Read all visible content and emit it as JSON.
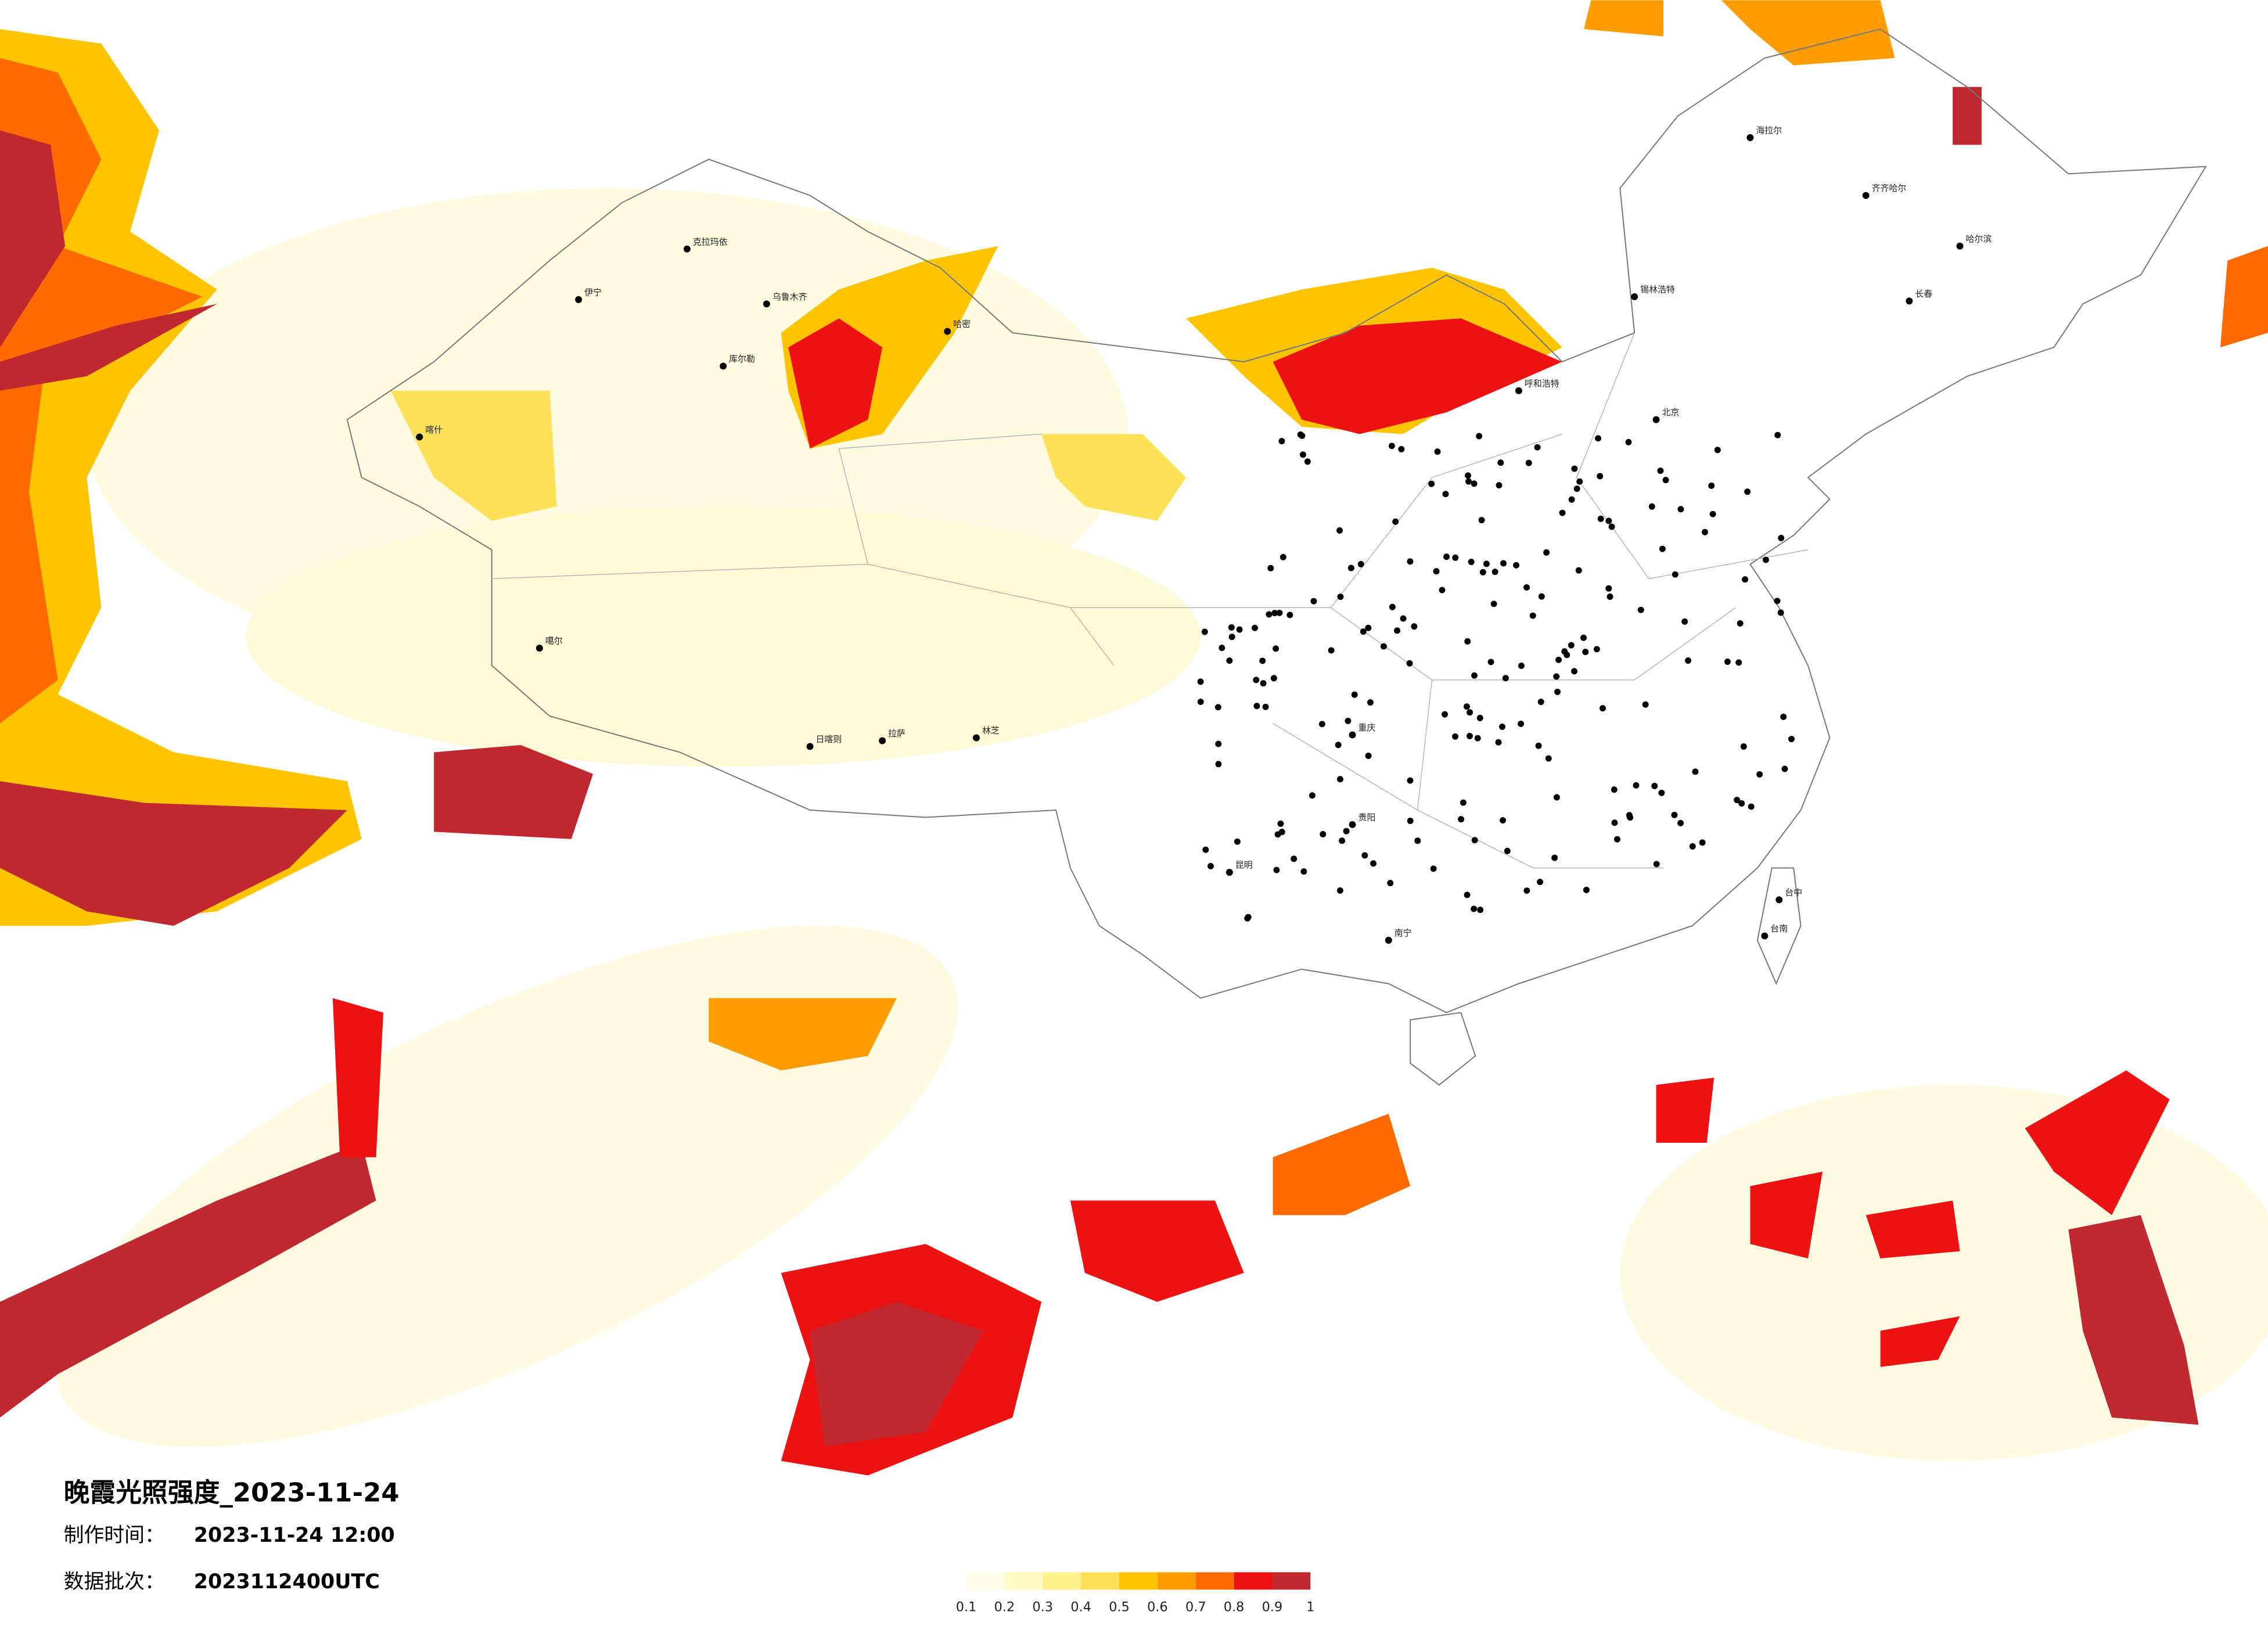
{
  "title": "晚霞光照强度_2023-11-24",
  "made_time_label": "制作时间：",
  "made_time": "2023-11-24 12:00",
  "batch_label": "数据批次：",
  "batch": "2023112400UTC",
  "legend": {
    "ticks": [
      0.1,
      0.2,
      0.3,
      0.4,
      0.5,
      0.6,
      0.7,
      0.8,
      0.9,
      1
    ],
    "colors": [
      "#fffde6",
      "#fff9c4",
      "#fff08a",
      "#ffe157",
      "#ffc400",
      "#ff9d00",
      "#ff6a00",
      "#ee1111",
      "#c0282f"
    ]
  },
  "cities": [
    "克拉玛依",
    "乌鲁木齐",
    "伊宁",
    "喀什",
    "库尔勒",
    "哈密",
    "拉萨",
    "日喀则",
    "林芝",
    "噶尔",
    "海拉尔",
    "齐齐哈尔",
    "哈尔滨",
    "长春",
    "呼和浩特",
    "锡林浩特",
    "北京",
    "重庆",
    "贵阳",
    "昆明",
    "南宁",
    "台中",
    "台南"
  ]
}
